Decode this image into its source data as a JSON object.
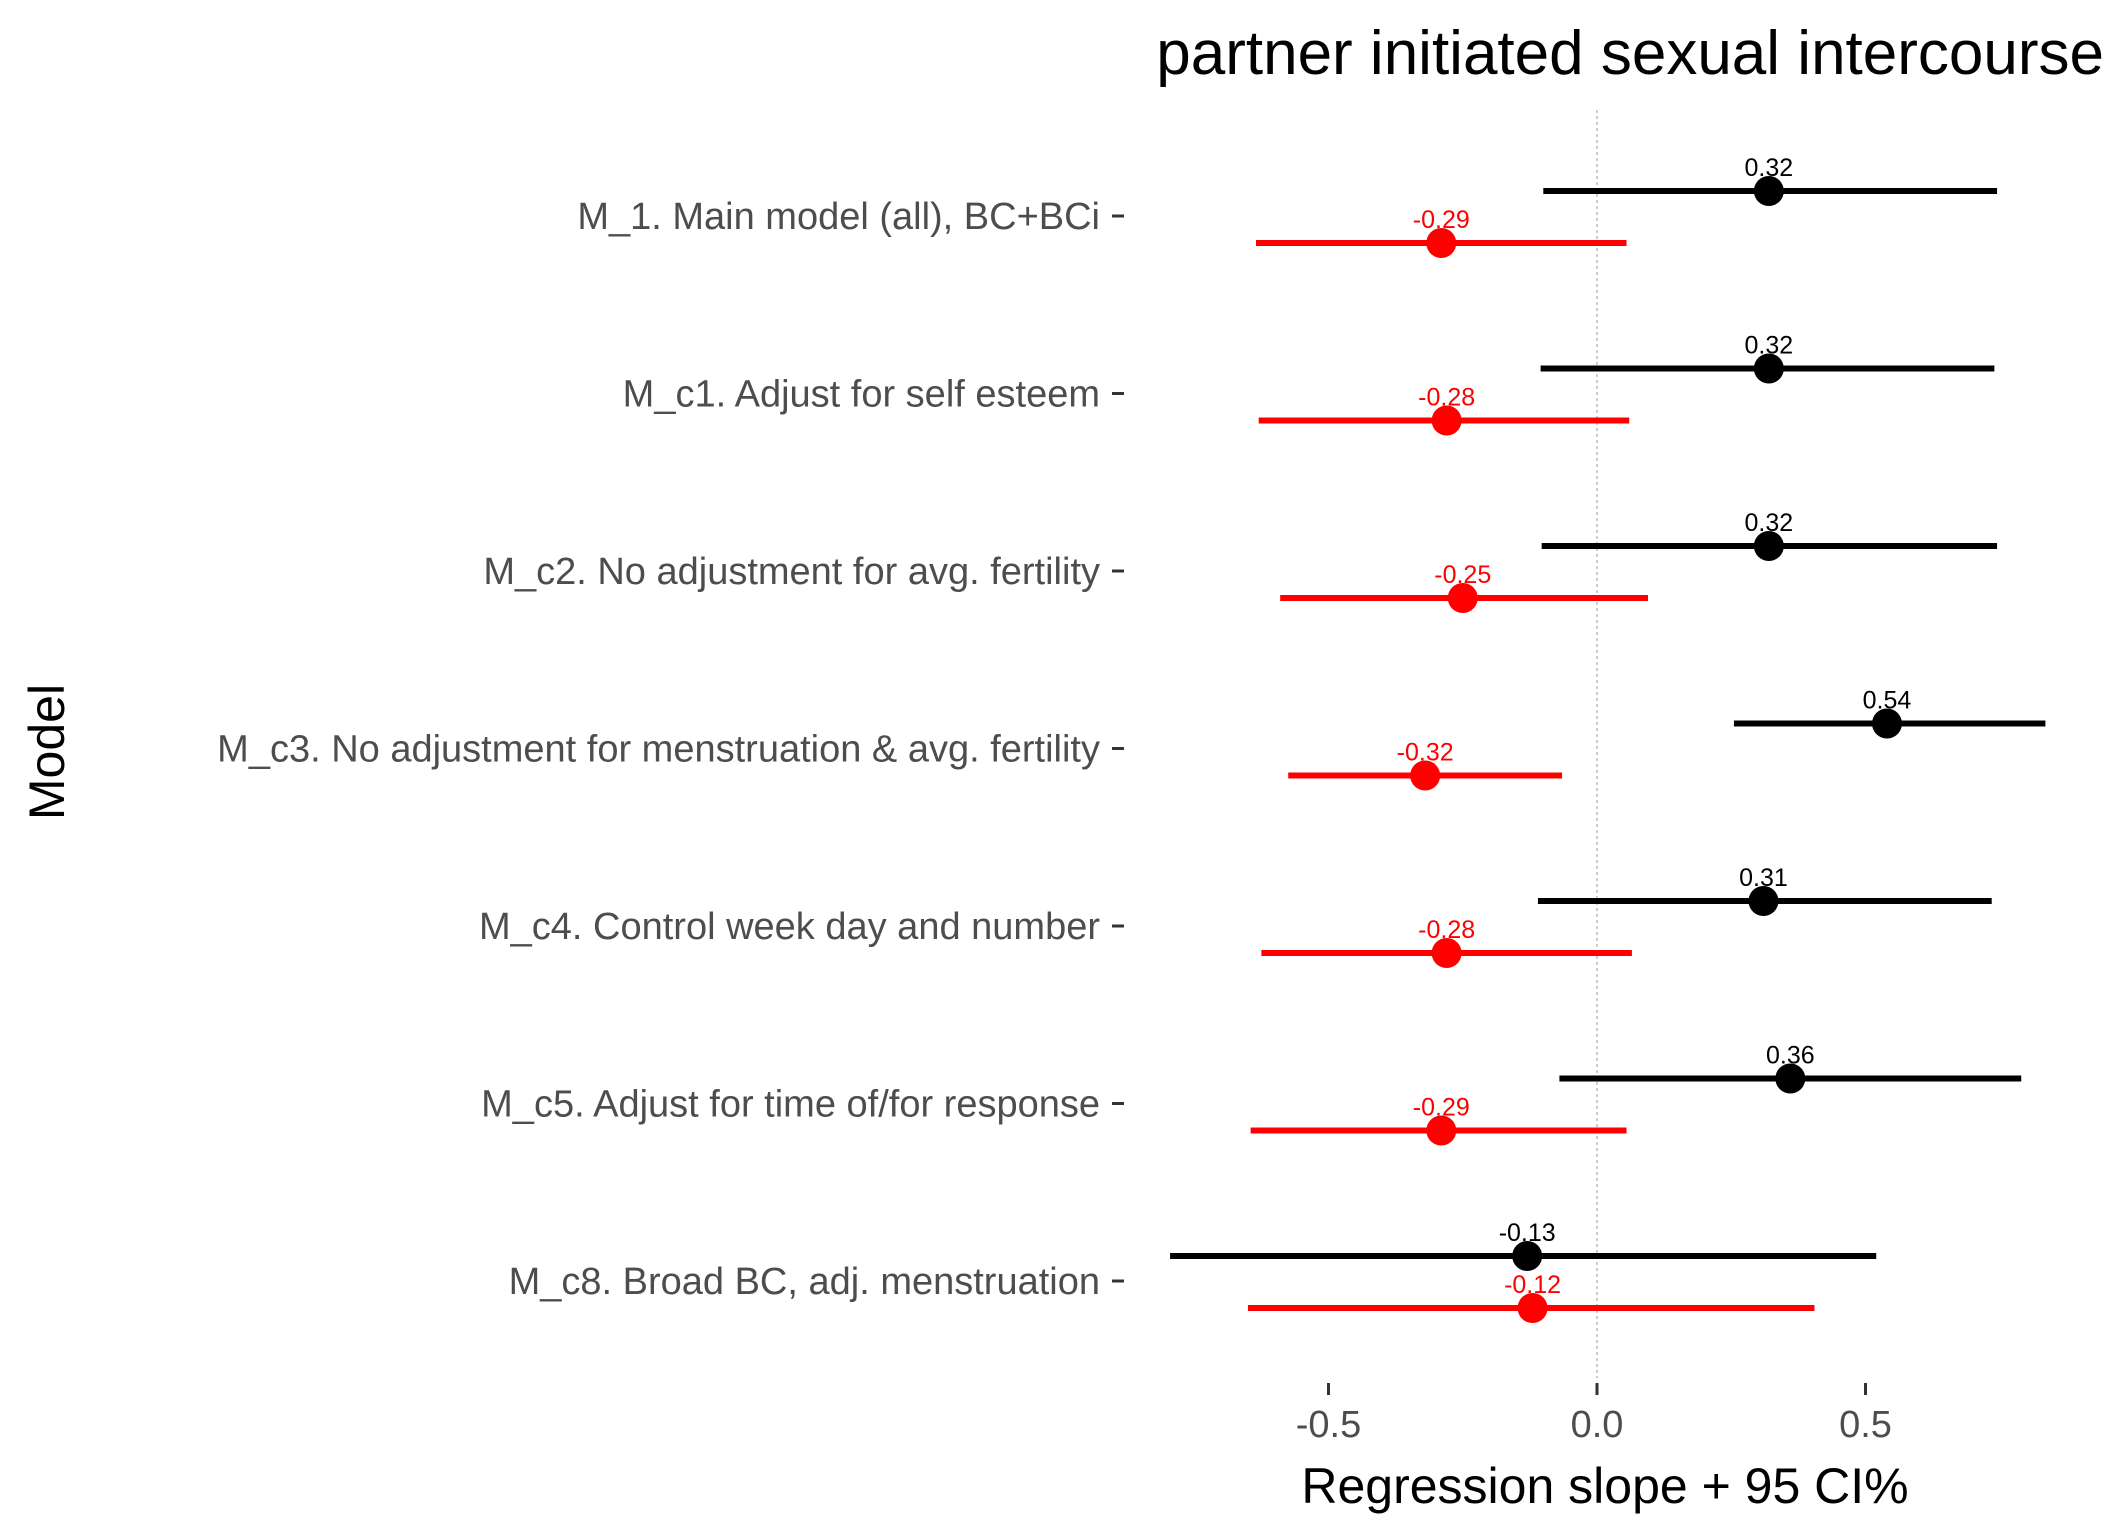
{
  "chart_data": {
    "type": "scatter",
    "title": "partner initiated sexual intercourse",
    "xlabel": "Regression slope + 95 CI%",
    "ylabel": "Model",
    "xlim": [
      -0.8,
      0.85
    ],
    "xticks": [
      -0.5,
      0.0,
      0.5
    ],
    "xtick_labels": [
      "-0.5",
      "0.0",
      "0.5"
    ],
    "zero_line": true,
    "grid": false,
    "categories": [
      "M_1. Main model (all), BC+BCi",
      "M_c1. Adjust for self esteem",
      "M_c2. No adjustment for avg. fertility",
      "M_c3. No adjustment for menstruation & avg. fertility",
      "M_c4. Control week day and number",
      "M_c5. Adjust for time of/for response",
      "M_c8. Broad BC, adj. menstruation"
    ],
    "series": [
      {
        "color": "#000000",
        "estimates": [
          0.32,
          0.32,
          0.32,
          0.54,
          0.31,
          0.36,
          -0.13
        ],
        "labels": [
          "0.32",
          "0.32",
          "0.32",
          "0.54",
          "0.31",
          "0.36",
          "-0.13"
        ],
        "ci_low": [
          -0.1,
          -0.105,
          -0.103,
          0.255,
          -0.11,
          -0.07,
          -0.795
        ],
        "ci_high": [
          0.745,
          0.74,
          0.745,
          0.835,
          0.735,
          0.79,
          0.52
        ]
      },
      {
        "color": "#ff0000",
        "estimates": [
          -0.29,
          -0.28,
          -0.25,
          -0.32,
          -0.28,
          -0.29,
          -0.12
        ],
        "labels": [
          "-0.29",
          "-0.28",
          "-0.25",
          "-0.32",
          "-0.28",
          "-0.29",
          "-0.12"
        ],
        "ci_low": [
          -0.635,
          -0.63,
          -0.59,
          -0.575,
          -0.625,
          -0.645,
          -0.65
        ],
        "ci_high": [
          0.055,
          0.06,
          0.095,
          -0.065,
          0.065,
          0.055,
          0.405
        ]
      }
    ]
  }
}
